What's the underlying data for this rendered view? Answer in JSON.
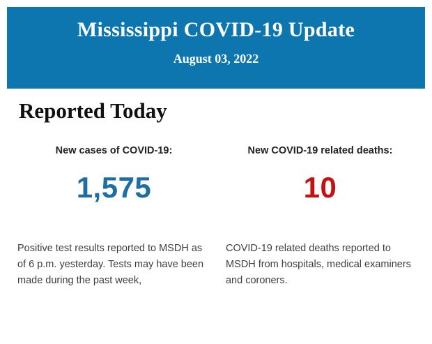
{
  "banner": {
    "title": "Mississippi COVID-19 Update",
    "date": "August 03, 2022"
  },
  "main": {
    "heading": "Reported Today",
    "stats": [
      {
        "id": "new-cases",
        "label": "New cases of COVID-19:",
        "value": "1,575",
        "description": "Positive test results reported to MSDH as of 6 p.m. yesterday. Tests may have been made during the past week,"
      },
      {
        "id": "new-deaths",
        "label": "New COVID-19 related deaths:",
        "value": "10",
        "description": "COVID-19 related deaths reported to MSDH from hospitals, medical examiners and coroners."
      }
    ]
  },
  "colors": {
    "banner_background": "#0d76ae",
    "banner_text": "#ffffff",
    "cases_value": "#1d6ea3",
    "deaths_value": "#c41112",
    "heading_text": "#111111",
    "label_text": "#212121",
    "body_text": "#3d3d3d",
    "page_background": "#ffffff"
  }
}
